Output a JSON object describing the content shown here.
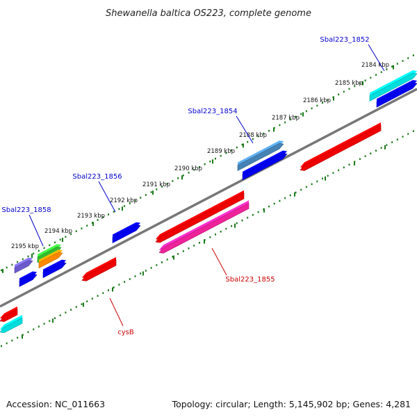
{
  "title": "Shewanella baltica OS223, complete genome",
  "footer": {
    "accession": "Accession: NC_011663",
    "topology": "Topology: circular; Length: 5,145,902 bp; Genes: 4,281"
  },
  "scale": {
    "labels": [
      "2184 kbp",
      "2185 kbp",
      "2186 kbp",
      "2187 kbp",
      "2188 kbp",
      "2189 kbp",
      "2190 kbp",
      "2191 kbp",
      "2192 kbp",
      "2193 kbp",
      "2194 kbp",
      "2195 kbp"
    ],
    "tick_color": "#1a7a1a",
    "backbone_color": "#777777"
  },
  "gene_labels": [
    {
      "name": "sbal223-1852",
      "text": "Sbal223_1852",
      "color": "#0000cc"
    },
    {
      "name": "sbal223-1854",
      "text": "Sbal223_1854",
      "color": "#0000cc"
    },
    {
      "name": "sbal223-1856",
      "text": "Sbal223_1856",
      "color": "#0000cc"
    },
    {
      "name": "sbal223-1858",
      "text": "Sbal223_1858",
      "color": "#0000cc"
    },
    {
      "name": "sbal223-1855",
      "text": "Sbal223_1855",
      "color": "#cc0000"
    },
    {
      "name": "cysb",
      "text": "cysB",
      "color": "#cc0000"
    }
  ],
  "colors": {
    "blue": "#0000ee",
    "red": "#ee0000",
    "cyan": "#00dddd",
    "steel": "#4682b4",
    "pink": "#ee2299",
    "green": "#33bb33",
    "orange": "#ff8800",
    "lavender": "#6a5acd"
  }
}
